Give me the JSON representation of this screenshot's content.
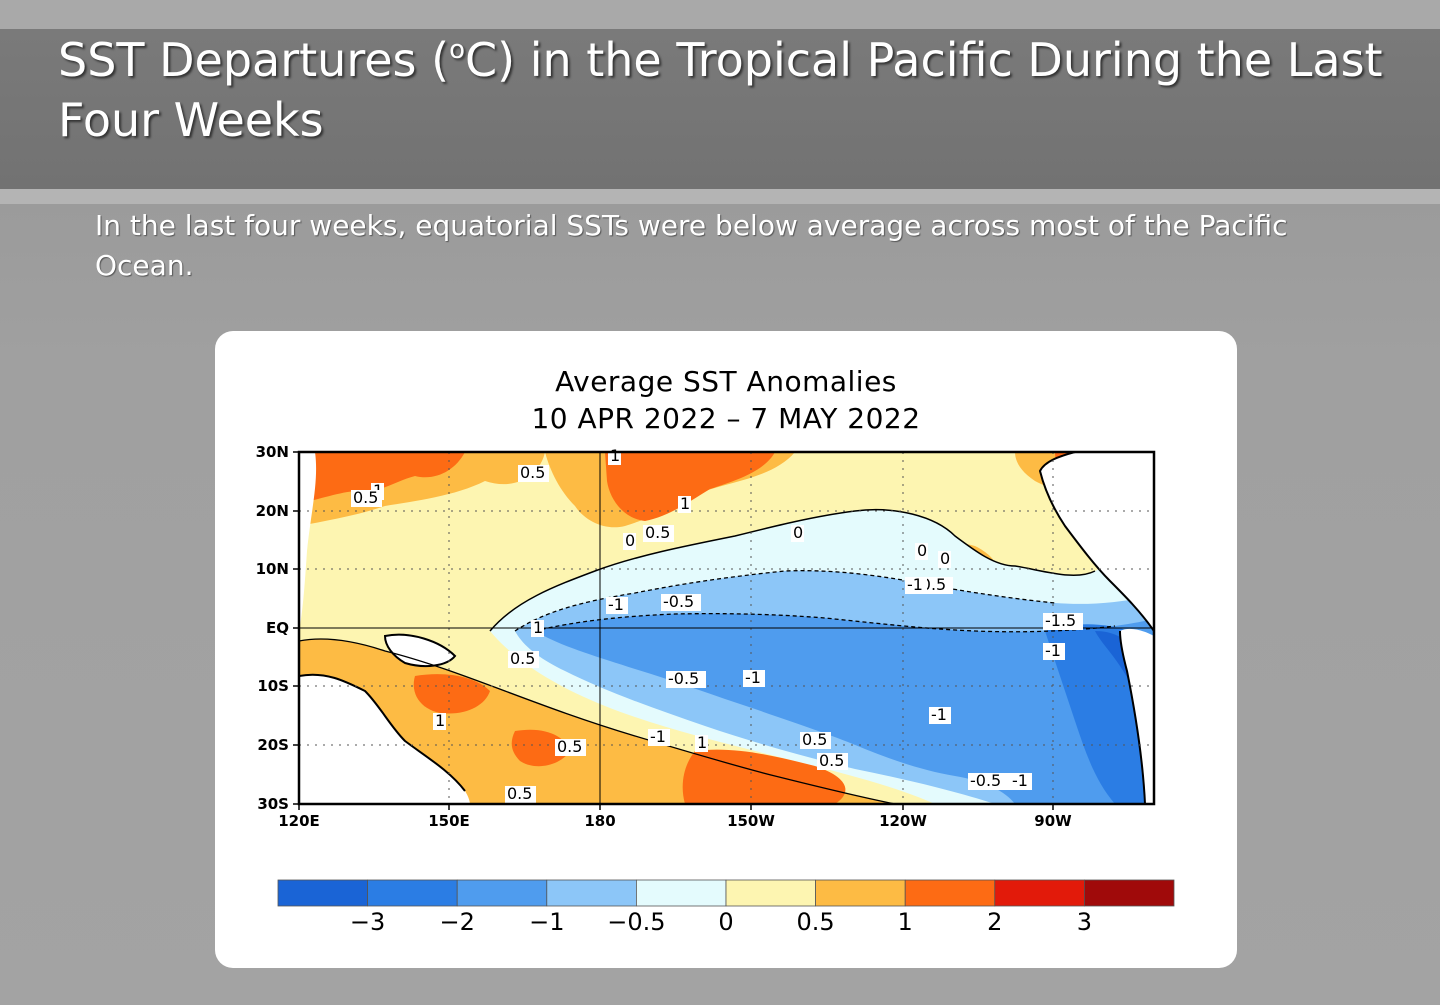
{
  "slide": {
    "title_pre": "SST Departures (",
    "title_sup": "o",
    "title_post": "C) in the Tropical Pacific During the Last Four Weeks",
    "subtitle": "In the last four weeks, equatorial SSTs were below average across most of the Pacific Ocean."
  },
  "map": {
    "title": "Average SST Anomalies",
    "date_range": "10 APR 2022 – 7 MAY 2022",
    "lat_labels": [
      "30N",
      "20N",
      "10N",
      "EQ",
      "10S",
      "20S",
      "30S"
    ],
    "lon_labels": [
      "120E",
      "150E",
      "180",
      "150W",
      "120W",
      "90W"
    ],
    "contour_labels": [
      "1",
      "0.5",
      "1",
      "0.5",
      "1",
      "0.5",
      "0",
      "0",
      "0",
      "0.5",
      "-0.5",
      "-0.5",
      "-1",
      "-0.5",
      "-1",
      "0",
      "0.5",
      "-0.5",
      "-1",
      "-1",
      "-1.5",
      "-1",
      "-1",
      "0.5",
      "1",
      "1",
      "0.5",
      "1",
      "0",
      "0.5",
      "-0.5",
      "-1",
      "0.5"
    ],
    "colorbar": {
      "labels": [
        "−3",
        "−2",
        "−1",
        "−0.5",
        "0",
        "0.5",
        "1",
        "2",
        "3"
      ],
      "colors": [
        "#1a64d6",
        "#2b7de4",
        "#4f9cee",
        "#8cc6f8",
        "#e4fbfd",
        "#fdf5b1",
        "#fdbb44",
        "#fd6b14",
        "#e21a0a",
        "#a00a0a"
      ]
    }
  }
}
